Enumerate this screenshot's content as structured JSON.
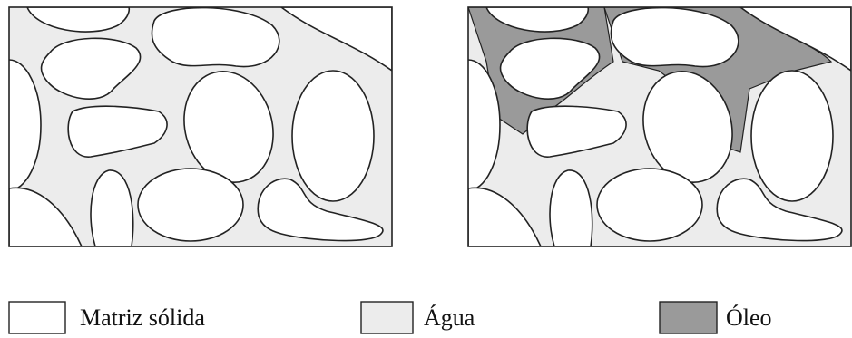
{
  "legend": [
    {
      "label": "Matriz sólida"
    },
    {
      "label": "Água"
    },
    {
      "label": "Óleo"
    }
  ]
}
